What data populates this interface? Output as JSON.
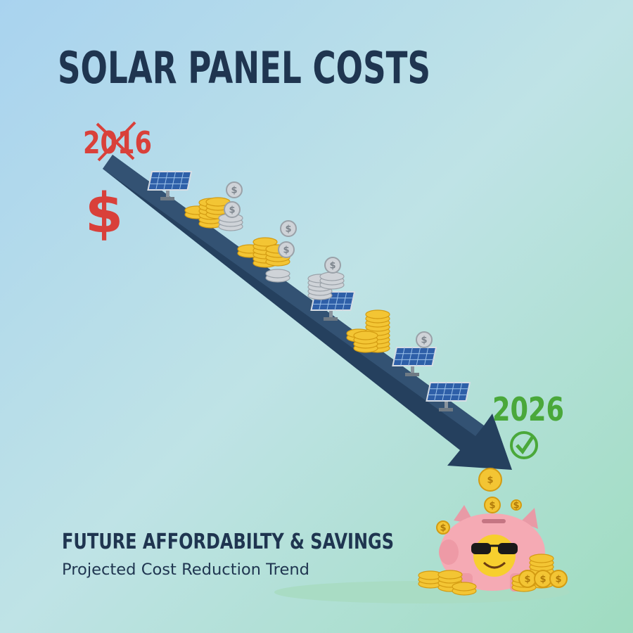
{
  "title": "SOLAR PANEL COSTS",
  "start_year": "2016",
  "start_symbol": "$",
  "end_year": "2026",
  "coin_symbol": "$",
  "heading": "FUTURE AFFORDABILTY & SAVINGS",
  "tagline": "Projected Cost Reduction Trend"
}
